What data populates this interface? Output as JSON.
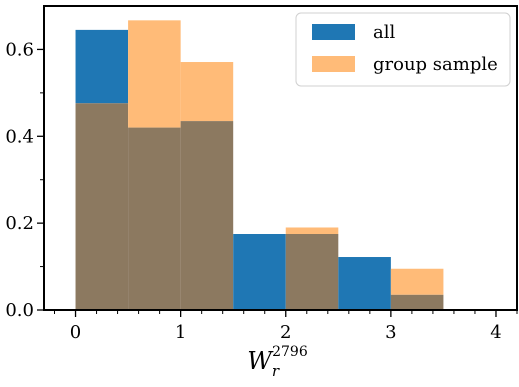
{
  "chart_data": {
    "type": "bar",
    "histogram": true,
    "bin_edges": [
      0,
      0.5,
      1,
      1.5,
      2,
      2.5,
      3,
      3.5,
      4
    ],
    "xlabel": {
      "base": "W",
      "subscript": "r",
      "superscript": "2796"
    },
    "ylabel": "",
    "title": "",
    "xlim": [
      -0.3,
      4.2
    ],
    "ylim": [
      0,
      0.7
    ],
    "xticks": [
      {
        "value": 0,
        "label": "0"
      },
      {
        "value": 1,
        "label": "1"
      },
      {
        "value": 2,
        "label": "2"
      },
      {
        "value": 3,
        "label": "3"
      },
      {
        "value": 4,
        "label": "4"
      }
    ],
    "yticks": [
      {
        "value": 0,
        "label": "0.0"
      },
      {
        "value": 0.2,
        "label": "0.2"
      },
      {
        "value": 0.4,
        "label": "0.4"
      },
      {
        "value": 0.6,
        "label": "0.6"
      }
    ],
    "grid": false,
    "legend_position": "top-right",
    "series": [
      {
        "name": "all",
        "color": "#1f77b4",
        "values": [
          0.645,
          0.42,
          0.435,
          0.175,
          0.175,
          0.122,
          0.035,
          0
        ]
      },
      {
        "name": "group sample",
        "color": "#ffbb78",
        "values": [
          0.476,
          0.667,
          0.571,
          0,
          0.19,
          0,
          0.095,
          0
        ]
      }
    ],
    "overlap_color": "#8c7960"
  }
}
